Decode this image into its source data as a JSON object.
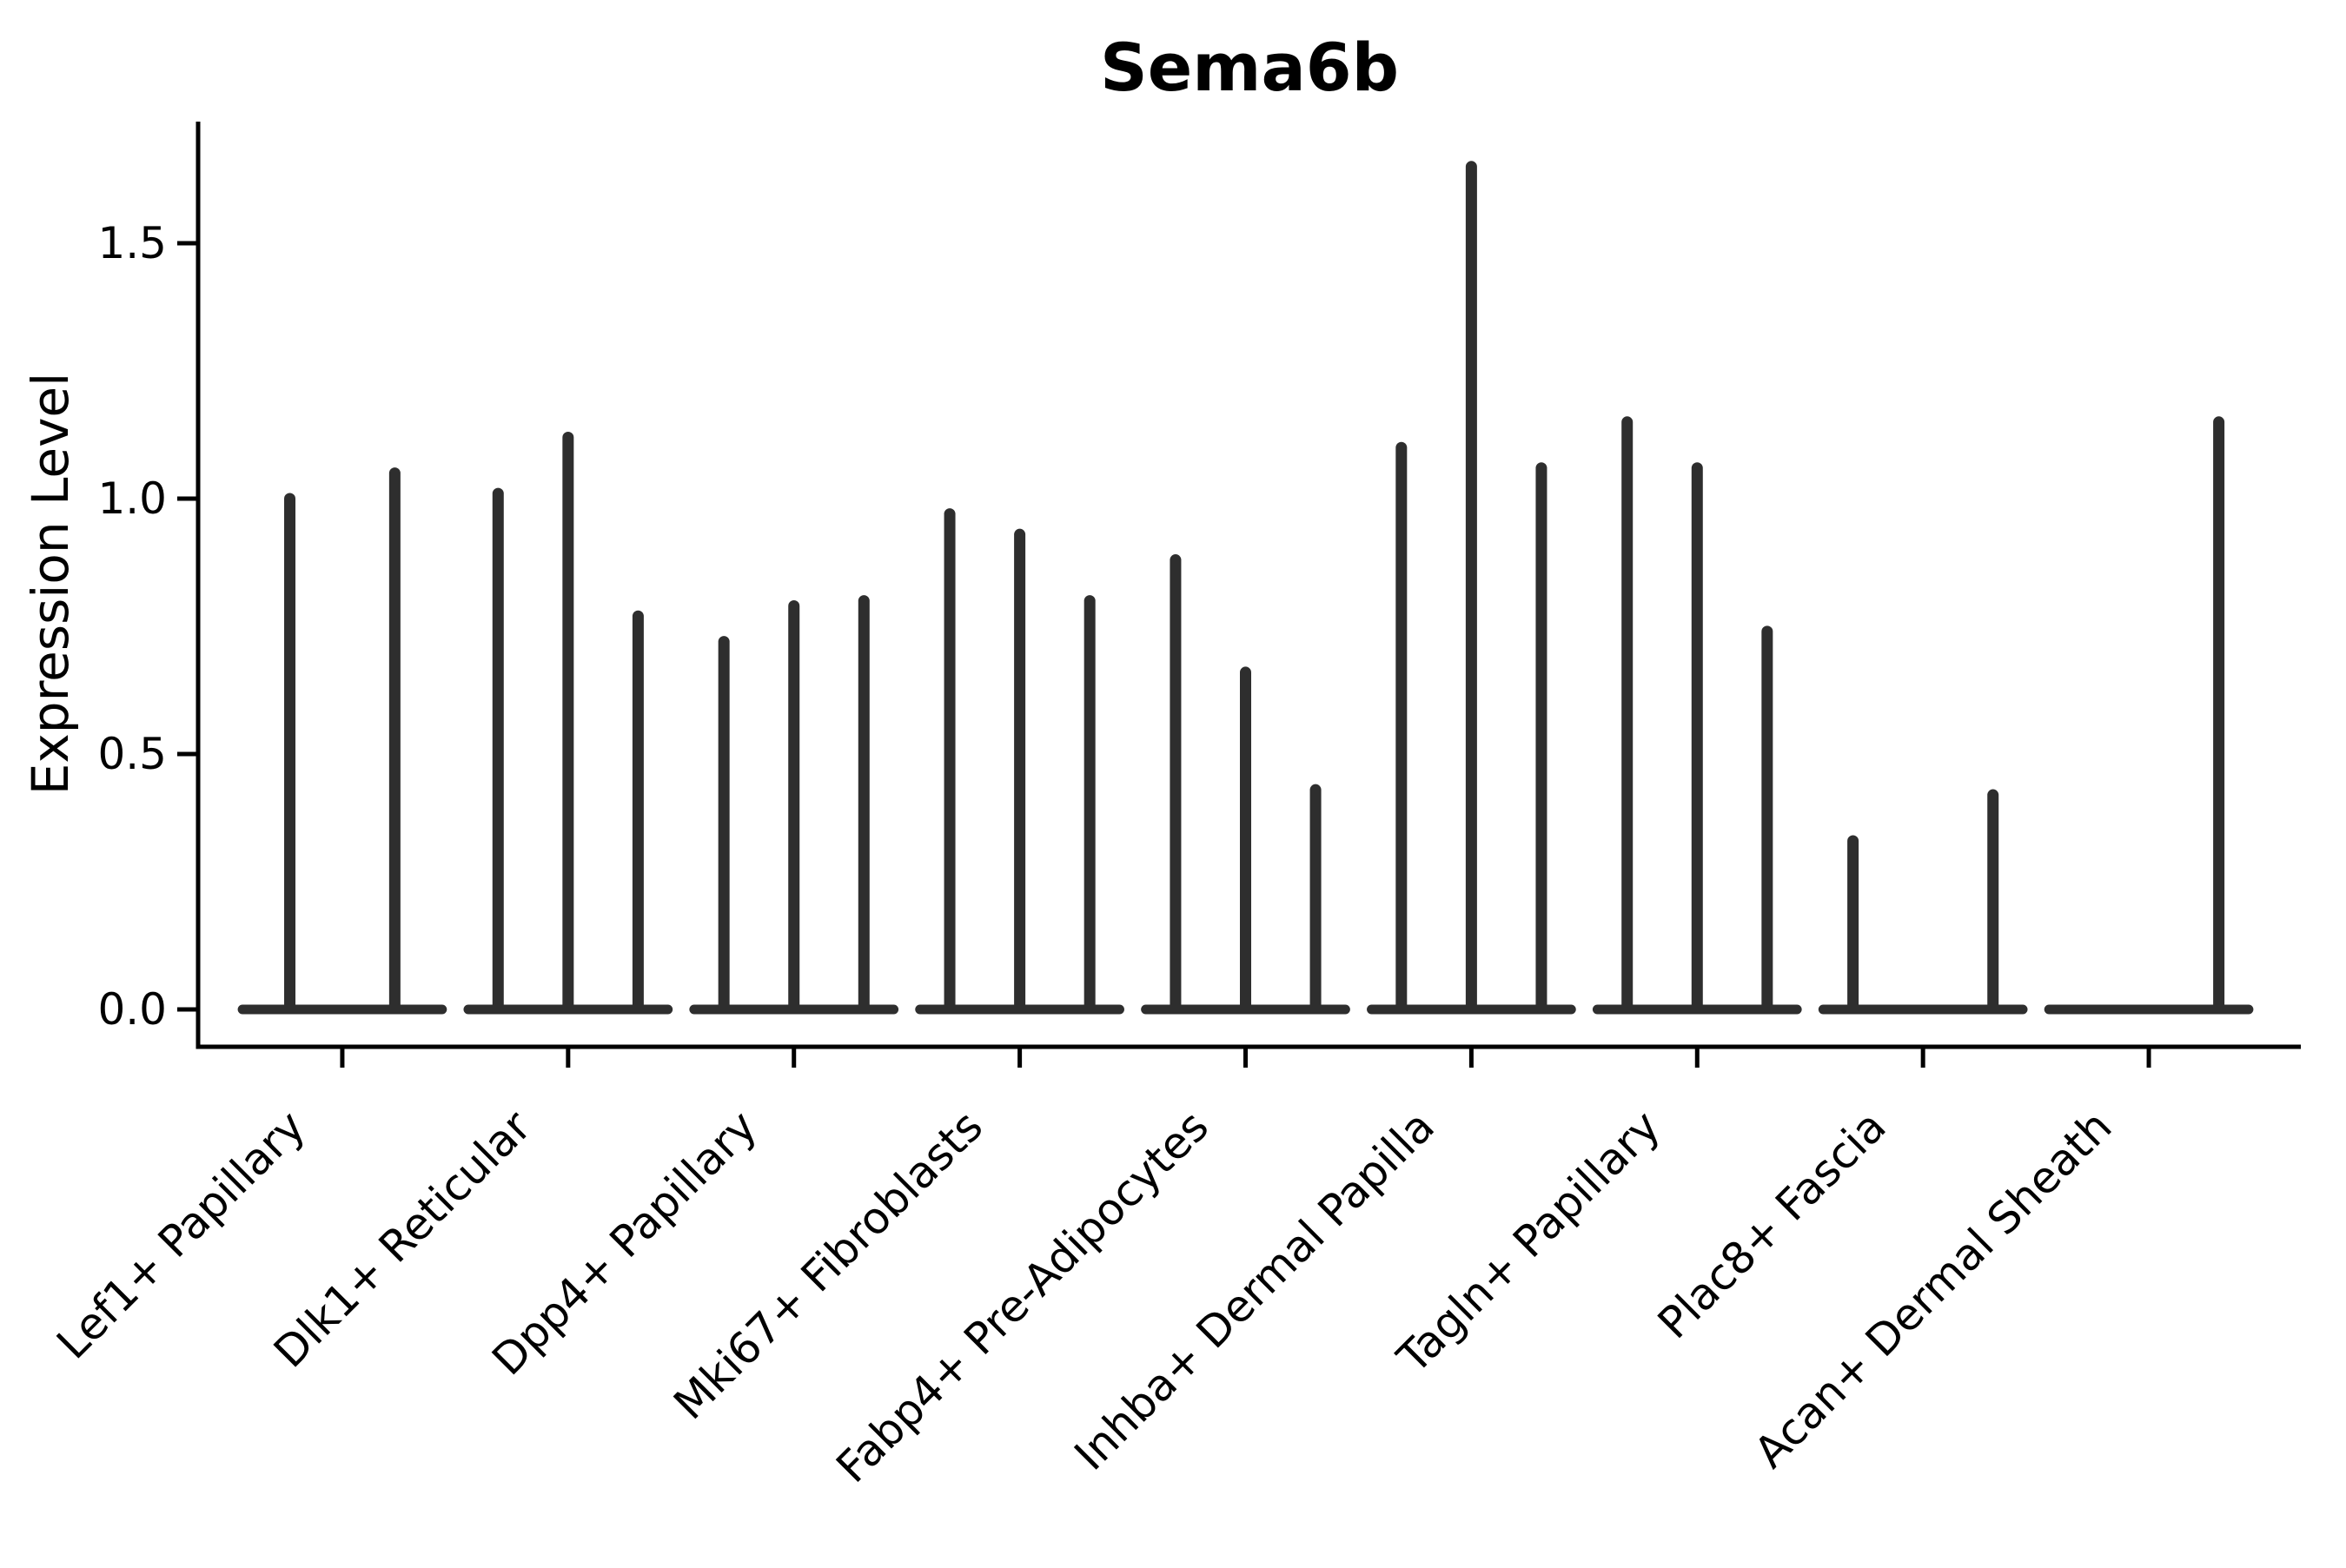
{
  "figure": {
    "background_color": "#ffffff"
  },
  "chart_data": {
    "type": "violin",
    "title": "Sema6b",
    "ylabel": "Expression Level",
    "xlabel": "",
    "grid": false,
    "legend": "none",
    "ylim": [
      -0.07,
      1.74
    ],
    "ytick_labels": [
      "0.0",
      "0.5",
      "1.0",
      "1.5"
    ],
    "ytick_values": [
      0.0,
      0.5,
      1.0,
      1.5
    ],
    "x_tick_label_rotation_deg": 45,
    "violin_color": "#2e2e2e",
    "axis_color": "#000000",
    "violin_shape_note": "Each violin is collapsed at expression 0 (flat horizontal base) with a thin vertical spike up to its maximum expression value",
    "categories": [
      "Lef1+ Papillary",
      "Dlk1+ Reticular",
      "Dpp4+ Papillary",
      "Mki67+ Fibroblasts",
      "Fabp4+ Pre-Adipocytes",
      "Inhba+ Dermal Papilla",
      "Tagln+ Papillary",
      "Plac8+ Fascia",
      "Acan+ Dermal Sheath"
    ],
    "groups": [
      {
        "label": "Lef1+ Papillary",
        "violin_maxima": [
          1.0,
          1.05
        ]
      },
      {
        "label": "Dlk1+ Reticular",
        "violin_maxima": [
          1.01,
          1.12,
          0.77
        ]
      },
      {
        "label": "Dpp4+ Papillary",
        "violin_maxima": [
          0.72,
          0.79,
          0.8
        ]
      },
      {
        "label": "Mki67+ Fibroblasts",
        "violin_maxima": [
          0.97,
          0.93,
          0.8
        ]
      },
      {
        "label": "Fabp4+ Pre-Adipocytes",
        "violin_maxima": [
          0.88,
          0.66,
          0.43
        ]
      },
      {
        "label": "Inhba+ Dermal Papilla",
        "violin_maxima": [
          1.1,
          1.65,
          1.06
        ]
      },
      {
        "label": "Tagln+ Papillary",
        "violin_maxima": [
          1.15,
          1.06,
          0.74
        ]
      },
      {
        "label": "Plac8+ Fascia",
        "violin_maxima": [
          0.33,
          0.0,
          0.42
        ]
      },
      {
        "label": "Acan+ Dermal Sheath",
        "violin_maxima": [
          0.0,
          0.0,
          1.15
        ]
      }
    ]
  }
}
